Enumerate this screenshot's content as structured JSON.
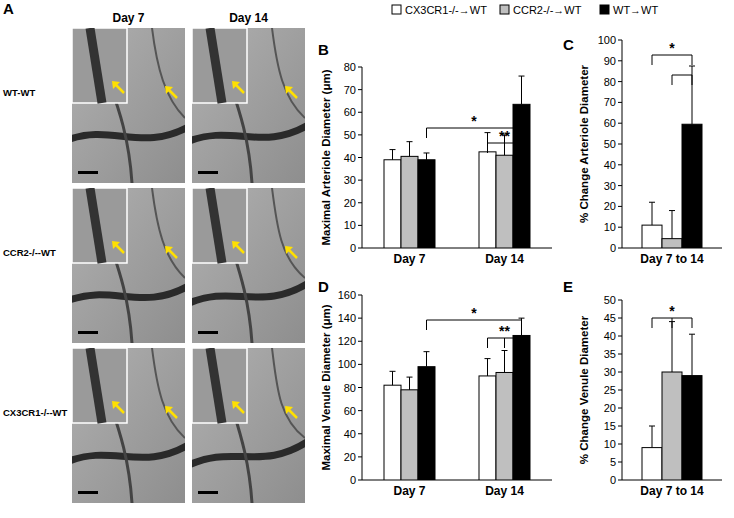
{
  "figure": {
    "panel_a": {
      "label": "A",
      "columns": [
        "Day 7",
        "Day 14"
      ],
      "rows": [
        "WT-WT",
        "CCR2-/--WT",
        "CX3CR1-/--WT"
      ]
    }
  },
  "chart_data": [
    {
      "type": "bar",
      "panel": "B",
      "y_label": "Maximal Arteriole Diameter (μm)",
      "categories": [
        "Day 7",
        "Day 14"
      ],
      "series": [
        {
          "name": "CX3CR1-/-→WT",
          "color": "#ffffff",
          "values": [
            39,
            42.5
          ],
          "errors": [
            4.5,
            8.5
          ]
        },
        {
          "name": "CCR2-/-→WT",
          "color": "#bfbfbf",
          "values": [
            40.5,
            41
          ],
          "errors": [
            6.5,
            9
          ]
        },
        {
          "name": "WT→WT",
          "color": "#000000",
          "values": [
            39,
            63.5
          ],
          "errors": [
            3,
            12.5
          ]
        }
      ],
      "ylim": [
        0,
        80
      ],
      "yticks": [
        0,
        10,
        20,
        30,
        40,
        50,
        60,
        70,
        80
      ],
      "annotations": [
        "*",
        "**"
      ],
      "legend": "top"
    },
    {
      "type": "bar",
      "panel": "C",
      "y_label": "% Change Arteriole Diameter",
      "categories": [
        "Day 7 to 14"
      ],
      "series": [
        {
          "color": "#ffffff",
          "values": [
            11
          ],
          "errors": [
            11
          ]
        },
        {
          "color": "#bfbfbf",
          "values": [
            4.5
          ],
          "errors": [
            13.5
          ]
        },
        {
          "color": "#000000",
          "values": [
            59.5
          ],
          "errors": [
            28
          ]
        }
      ],
      "ylim": [
        0,
        100
      ],
      "yticks": [
        0,
        10,
        20,
        30,
        40,
        50,
        60,
        70,
        80,
        90,
        100
      ],
      "annotations": [
        "*"
      ]
    },
    {
      "type": "bar",
      "panel": "D",
      "y_label": "Maximal Venule Diameter (μm)",
      "categories": [
        "Day 7",
        "Day 14"
      ],
      "series": [
        {
          "color": "#ffffff",
          "values": [
            82,
            90
          ],
          "errors": [
            12,
            15
          ]
        },
        {
          "color": "#bfbfbf",
          "values": [
            78,
            93
          ],
          "errors": [
            11,
            19
          ]
        },
        {
          "color": "#000000",
          "values": [
            98,
            125
          ],
          "errors": [
            13,
            15
          ]
        }
      ],
      "ylim": [
        0,
        160
      ],
      "yticks": [
        0,
        20,
        40,
        60,
        80,
        100,
        120,
        140,
        160
      ],
      "annotations": [
        "*",
        "**"
      ]
    },
    {
      "type": "bar",
      "panel": "E",
      "y_label": "% Change Venule Diameter",
      "categories": [
        "Day 7 to 14"
      ],
      "series": [
        {
          "color": "#ffffff",
          "values": [
            9
          ],
          "errors": [
            6
          ]
        },
        {
          "color": "#bfbfbf",
          "values": [
            30
          ],
          "errors": [
            14
          ]
        },
        {
          "color": "#000000",
          "values": [
            29
          ],
          "errors": [
            11.5
          ]
        }
      ],
      "ylim": [
        0,
        50
      ],
      "yticks": [
        0,
        5,
        10,
        15,
        20,
        25,
        30,
        35,
        40,
        45,
        50
      ],
      "annotations": [
        "*"
      ]
    }
  ]
}
